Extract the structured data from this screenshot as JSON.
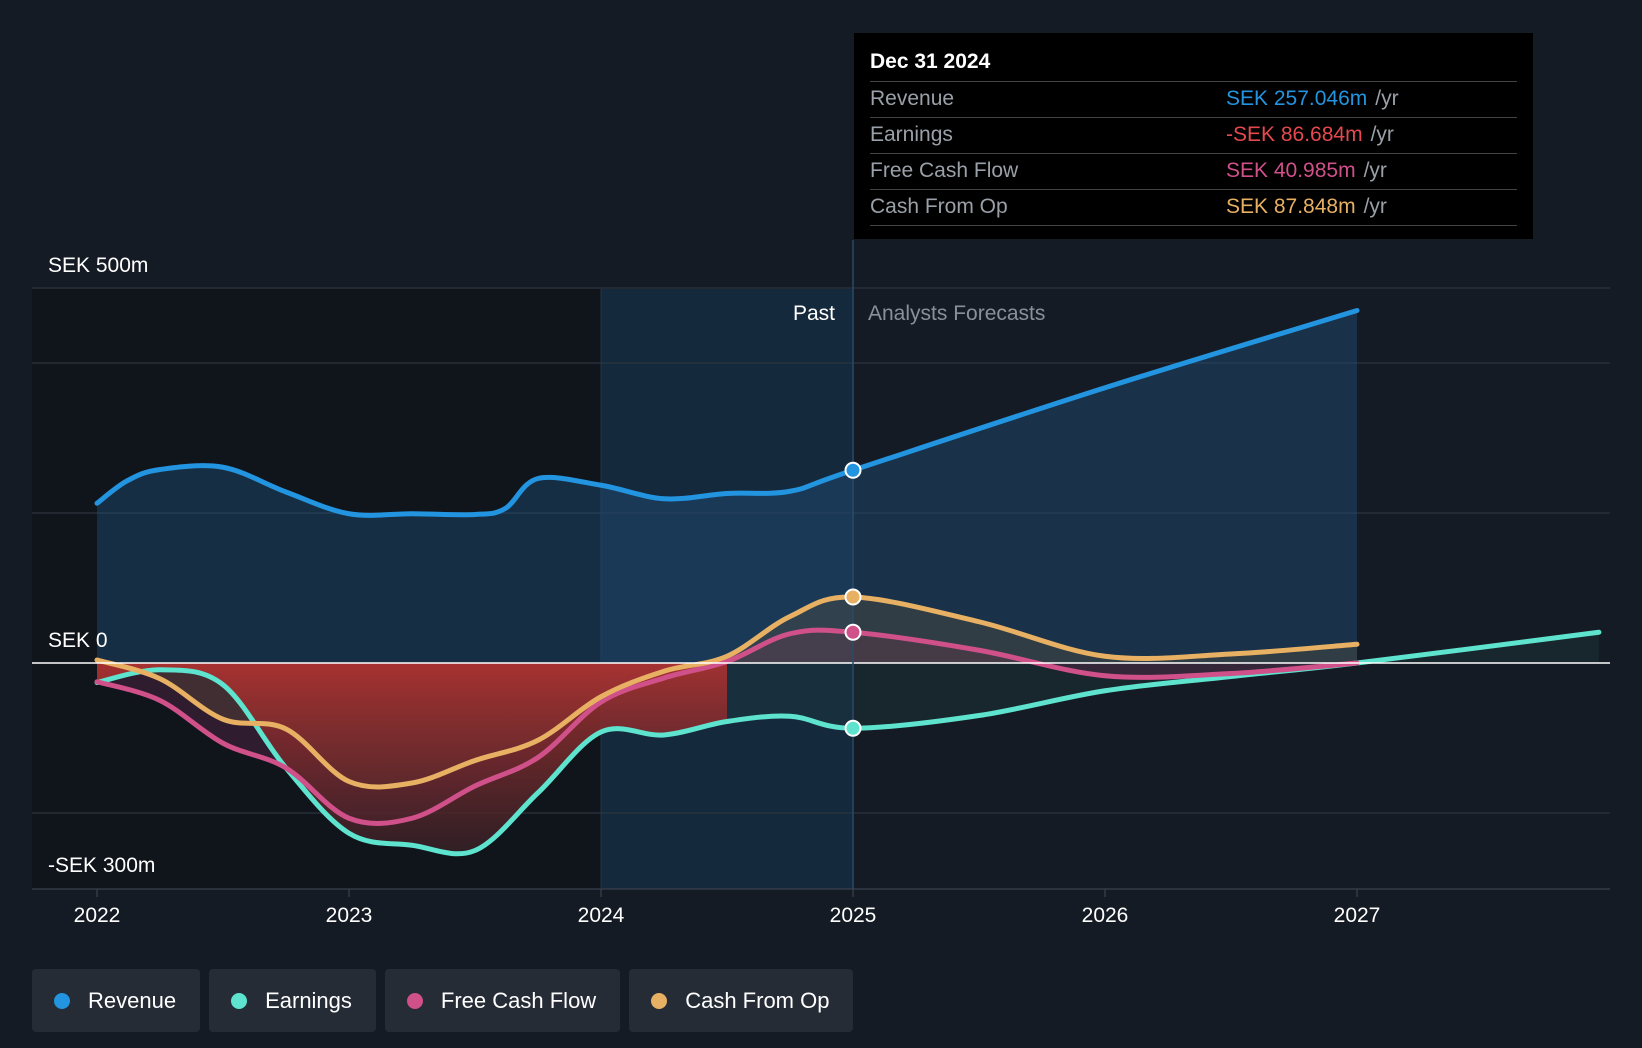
{
  "tooltip": {
    "date": "Dec 31 2024",
    "unit": "/yr",
    "rows": [
      {
        "label": "Revenue",
        "value": "SEK 257.046m",
        "color": "#2394df"
      },
      {
        "label": "Earnings",
        "value": "-SEK 86.684m",
        "color": "#e5484d"
      },
      {
        "label": "Free Cash Flow",
        "value": "SEK 40.985m",
        "color": "#d0508a"
      },
      {
        "label": "Cash From Op",
        "value": "SEK 87.848m",
        "color": "#e8b063"
      }
    ]
  },
  "legend": [
    {
      "label": "Revenue",
      "color": "#2394df"
    },
    {
      "label": "Earnings",
      "color": "#5ee3cf"
    },
    {
      "label": "Free Cash Flow",
      "color": "#d0508a"
    },
    {
      "label": "Cash From Op",
      "color": "#e8b063"
    }
  ],
  "chart_data": {
    "type": "line",
    "title": "",
    "xlabel": "",
    "ylabel": "",
    "x_ticks": [
      "2022",
      "2023",
      "2024",
      "2025",
      "2026",
      "2027"
    ],
    "y_labels": {
      "top": "SEK 500m",
      "zero": "SEK 0",
      "bottom": "-SEK 300m"
    },
    "ylim": [
      -300,
      500
    ],
    "xlim": [
      2021.75,
      2027.96
    ],
    "divider_x": 2025.0,
    "past_label": "Past",
    "forecast_label": "Analysts Forecasts",
    "highlight_range": [
      2024.0,
      2025.0
    ],
    "series": [
      {
        "name": "Revenue",
        "color": "#2394df",
        "points": [
          [
            2022.0,
            213
          ],
          [
            2022.12,
            243
          ],
          [
            2022.25,
            258
          ],
          [
            2022.5,
            261
          ],
          [
            2022.75,
            228
          ],
          [
            2023.0,
            199
          ],
          [
            2023.25,
            199
          ],
          [
            2023.5,
            198
          ],
          [
            2023.62,
            206
          ],
          [
            2023.75,
            246
          ],
          [
            2024.0,
            237
          ],
          [
            2024.25,
            219
          ],
          [
            2024.5,
            226
          ],
          [
            2024.75,
            229
          ],
          [
            2025.0,
            257
          ],
          [
            2026.0,
            367
          ],
          [
            2027.0,
            470
          ]
        ]
      },
      {
        "name": "Earnings",
        "color": "#5ee3cf",
        "points": [
          [
            2022.0,
            -26
          ],
          [
            2022.25,
            -9
          ],
          [
            2022.5,
            -29
          ],
          [
            2022.75,
            -140
          ],
          [
            2023.0,
            -227
          ],
          [
            2023.25,
            -243
          ],
          [
            2023.5,
            -250
          ],
          [
            2023.75,
            -173
          ],
          [
            2024.0,
            -92
          ],
          [
            2024.25,
            -96
          ],
          [
            2024.5,
            -78
          ],
          [
            2024.75,
            -71
          ],
          [
            2025.0,
            -87
          ],
          [
            2025.5,
            -70
          ],
          [
            2026.0,
            -37
          ],
          [
            2026.5,
            -18
          ],
          [
            2027.0,
            0
          ],
          [
            2027.96,
            41
          ]
        ]
      },
      {
        "name": "Free Cash Flow",
        "color": "#d0508a",
        "points": [
          [
            2022.0,
            -25
          ],
          [
            2022.25,
            -50
          ],
          [
            2022.5,
            -107
          ],
          [
            2022.75,
            -140
          ],
          [
            2023.0,
            -207
          ],
          [
            2023.25,
            -207
          ],
          [
            2023.5,
            -164
          ],
          [
            2023.75,
            -126
          ],
          [
            2024.0,
            -52
          ],
          [
            2024.25,
            -20
          ],
          [
            2024.5,
            2
          ],
          [
            2024.75,
            39
          ],
          [
            2025.0,
            41
          ],
          [
            2025.5,
            17
          ],
          [
            2026.0,
            -17
          ],
          [
            2026.5,
            -14
          ],
          [
            2027.0,
            0
          ]
        ]
      },
      {
        "name": "Cash From Op",
        "color": "#e8b063",
        "points": [
          [
            2022.0,
            4
          ],
          [
            2022.25,
            -21
          ],
          [
            2022.5,
            -75
          ],
          [
            2022.75,
            -88
          ],
          [
            2023.0,
            -158
          ],
          [
            2023.25,
            -160
          ],
          [
            2023.5,
            -130
          ],
          [
            2023.75,
            -103
          ],
          [
            2024.0,
            -45
          ],
          [
            2024.25,
            -11
          ],
          [
            2024.5,
            9
          ],
          [
            2024.75,
            62
          ],
          [
            2025.0,
            88
          ],
          [
            2025.5,
            55
          ],
          [
            2026.0,
            9
          ],
          [
            2026.5,
            12
          ],
          [
            2027.0,
            25
          ]
        ]
      }
    ]
  }
}
